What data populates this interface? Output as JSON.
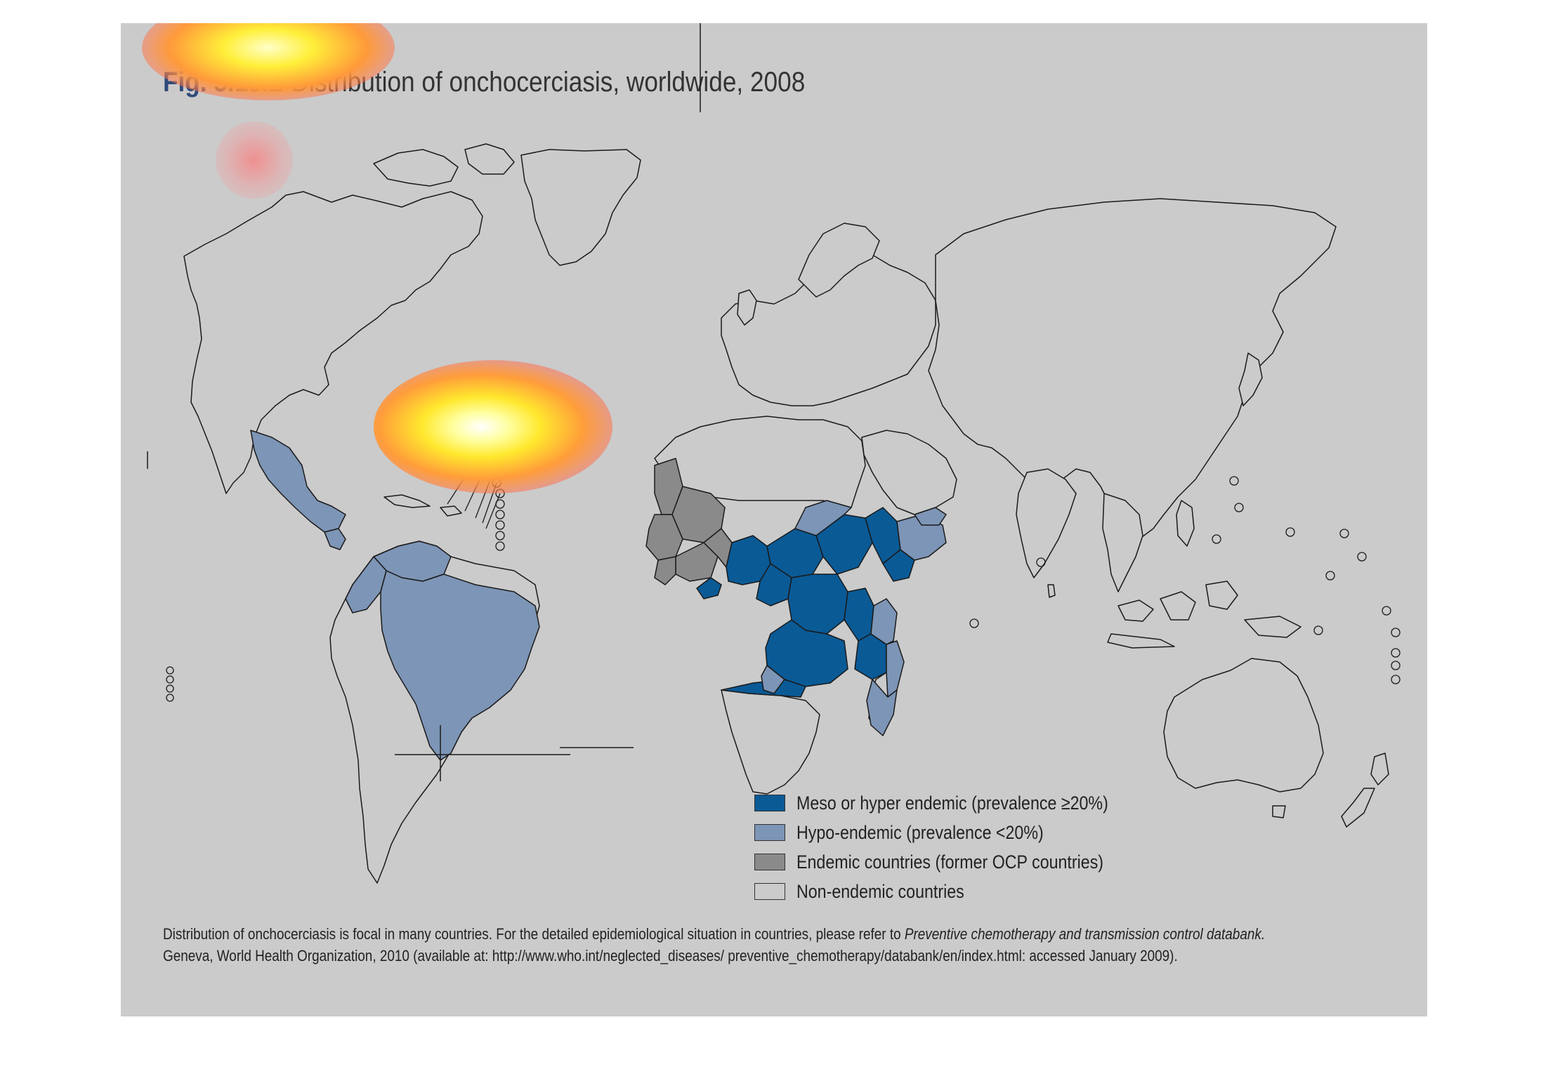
{
  "figure": {
    "number": "Fig. 5.15.1",
    "title": "Distribution of onchocerciasis, worldwide, 2008"
  },
  "legend": [
    {
      "label": "Meso or hyper endemic (prevalence ≥20%)",
      "color": "#0a5a96"
    },
    {
      "label": "Hypo-endemic (prevalence <20%)",
      "color": "#7d95b6"
    },
    {
      "label": "Endemic countries (former OCP countries)",
      "color": "#8a8a8a"
    },
    {
      "label": "Non-endemic countries",
      "color": "#cbcbcb"
    }
  ],
  "footnote": {
    "text_before": "Distribution of onchocerciasis is focal in many countries. For the detailed epidemiological situation in countries, please refer to ",
    "italic": "Preventive chemotherapy and transmission control databank.",
    "text_after": "Geneva, World Health Organization, 2010 (available at: http://www.who.int/neglected_diseases/ preventive_chemotherapy/databank/en/index.html: accessed January 2009)."
  },
  "colors": {
    "background": "#cbcbcb",
    "meso_hyper": "#0a5a96",
    "hypo": "#7d95b6",
    "former_ocp": "#8a8a8a",
    "non_endemic": "#cbcbcb",
    "outline": "#1a1a1a"
  }
}
